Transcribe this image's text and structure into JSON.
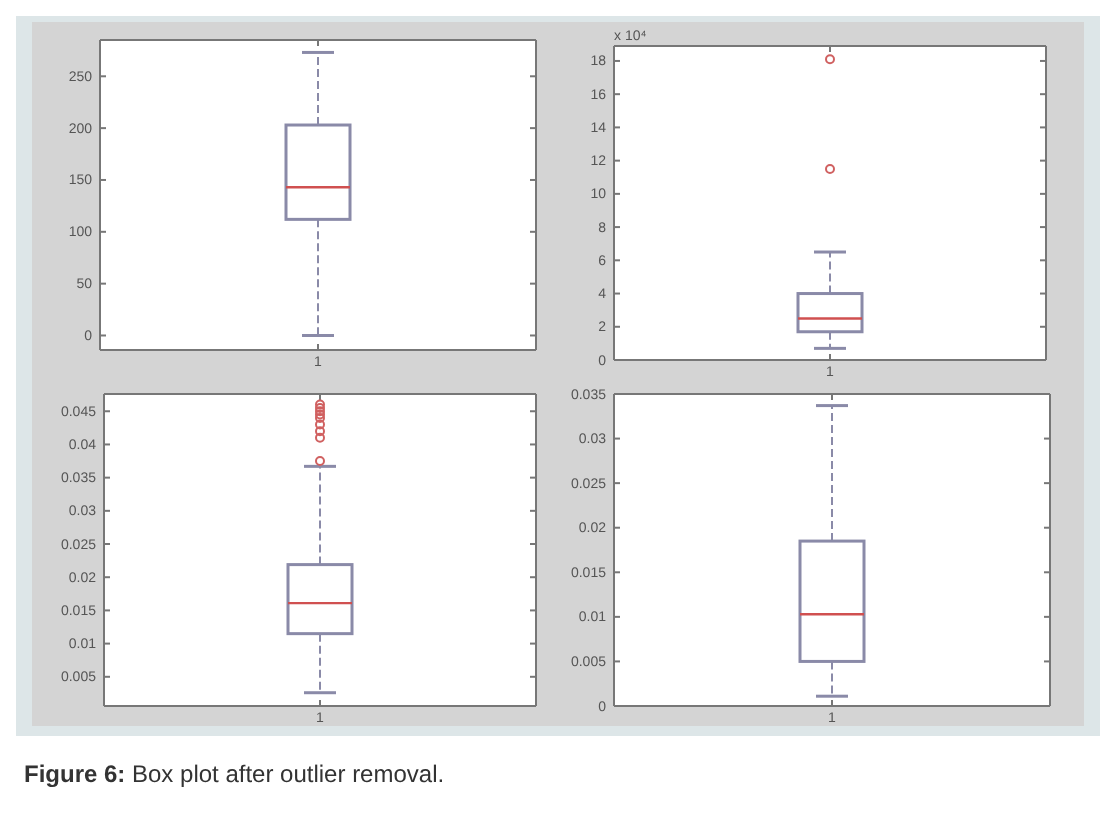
{
  "chart_data": [
    {
      "type": "box",
      "categories": [
        "1"
      ],
      "ylim": [
        -14,
        285
      ],
      "yticks": [
        0,
        50,
        100,
        150,
        200,
        250
      ],
      "color": "#8a8aa8",
      "boxes": [
        {
          "low": 0,
          "q1": 112,
          "median": 143,
          "q3": 203,
          "high": 273
        }
      ]
    },
    {
      "type": "box",
      "categories": [
        "1"
      ],
      "ylabel": "x 10⁴",
      "ylim": [
        0,
        18.9
      ],
      "yticks": [
        0,
        2,
        4,
        6,
        8,
        10,
        12,
        14,
        16,
        18
      ],
      "color": "#8a8aa8",
      "boxes": [
        {
          "low": 0.7,
          "q1": 1.7,
          "median": 2.5,
          "q3": 4.0,
          "high": 6.5,
          "outliers": [
            11.5,
            18.1
          ]
        }
      ]
    },
    {
      "type": "box",
      "categories": [
        "1"
      ],
      "ylim": [
        0.0006,
        0.0476
      ],
      "yticks": [
        0.005,
        0.01,
        0.015,
        0.02,
        0.025,
        0.03,
        0.035,
        0.04,
        0.045
      ],
      "color": "#8a8aa8",
      "boxes": [
        {
          "low": 0.0026,
          "q1": 0.0115,
          "median": 0.0161,
          "q3": 0.0219,
          "high": 0.0367,
          "outliers": [
            0.0375,
            0.041,
            0.042,
            0.043,
            0.044,
            0.0445,
            0.045,
            0.0455,
            0.046
          ]
        }
      ]
    },
    {
      "type": "box",
      "categories": [
        "1"
      ],
      "ylim": [
        0,
        0.035
      ],
      "yticks": [
        0,
        0.005,
        0.01,
        0.015,
        0.02,
        0.025,
        0.03,
        0.035
      ],
      "color": "#8a8aa8",
      "boxes": [
        {
          "low": 0.0011,
          "q1": 0.005,
          "median": 0.0103,
          "q3": 0.0185,
          "high": 0.0337
        }
      ],
      "annotations": [
        "Figure 6: Box plot after outlier removal."
      ]
    }
  ]
}
